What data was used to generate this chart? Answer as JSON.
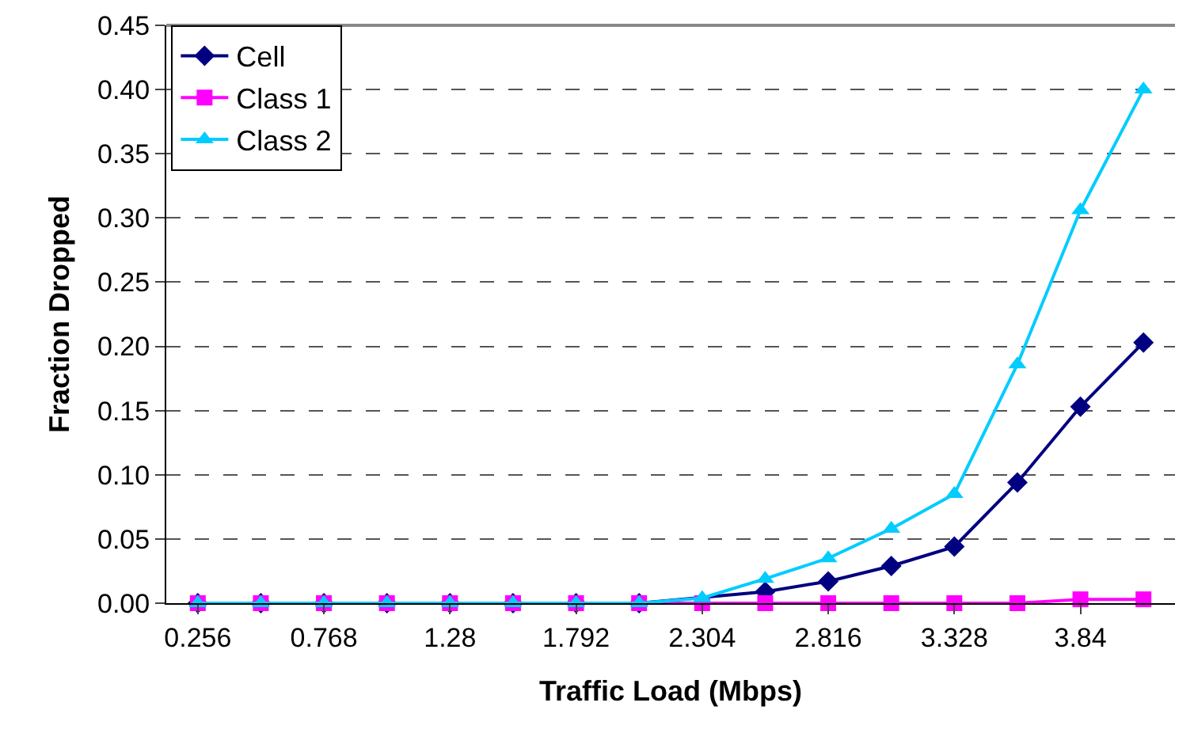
{
  "chart_data": {
    "type": "line",
    "xlabel": "Traffic Load (Mbps)",
    "ylabel": "Fraction Dropped",
    "categories": [
      "0.256",
      null,
      "0.768",
      null,
      "1.28",
      null,
      "1.792",
      null,
      "2.304",
      null,
      "2.816",
      null,
      "3.328",
      null,
      "3.84",
      null
    ],
    "series": [
      {
        "name": "Cell",
        "color": "#000080",
        "marker": "diamond",
        "values": [
          0,
          0,
          0,
          0,
          0,
          0,
          0,
          0,
          null,
          0.009,
          0.017,
          0.029,
          0.044,
          0.094,
          0.153,
          0.203
        ]
      },
      {
        "name": "Class 1",
        "color": "#ff00ff",
        "marker": "square",
        "values": [
          0,
          0,
          0,
          0,
          0,
          0,
          0,
          0,
          0,
          0,
          0,
          0,
          0,
          0,
          0.003,
          0.003
        ]
      },
      {
        "name": "Class 2",
        "color": "#00ccff",
        "marker": "triangle",
        "values": [
          0,
          0,
          0,
          0,
          0,
          0,
          0,
          0,
          0.004,
          0.019,
          0.035,
          0.058,
          0.085,
          0.186,
          0.306,
          0.4
        ]
      }
    ],
    "ylim": [
      0,
      0.45
    ],
    "yticks": [
      {
        "value": 0,
        "label": "0.00"
      },
      {
        "value": 0.05,
        "label": "0.05"
      },
      {
        "value": 0.1,
        "label": "0.10"
      },
      {
        "value": 0.15,
        "label": "0.15"
      },
      {
        "value": 0.2,
        "label": "0.20"
      },
      {
        "value": 0.25,
        "label": "0.25"
      },
      {
        "value": 0.3,
        "label": "0.30"
      },
      {
        "value": 0.35,
        "label": "0.35"
      },
      {
        "value": 0.4,
        "label": "0.40"
      },
      {
        "value": 0.45,
        "label": "0.45"
      }
    ],
    "grid": "y",
    "legend": "top left",
    "line_style": "solid"
  }
}
